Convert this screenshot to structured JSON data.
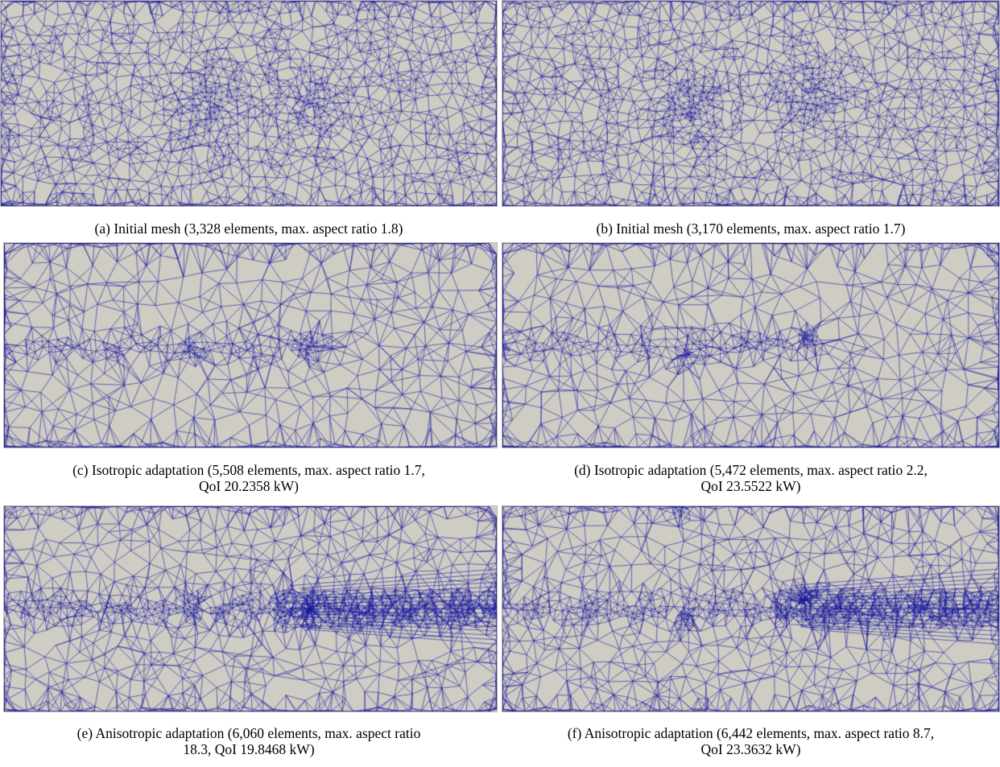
{
  "figure": {
    "panels": [
      {
        "id": "a",
        "caption_lines": [
          "(a) Initial mesh (3,328 elements, max. aspect ratio 1.8)"
        ],
        "elements": 3328,
        "max_aspect_ratio": 1.8,
        "adaptation": "none"
      },
      {
        "id": "b",
        "caption_lines": [
          "(b) Initial mesh (3,170 elements, max. aspect ratio 1.7)"
        ],
        "elements": 3170,
        "max_aspect_ratio": 1.7,
        "adaptation": "none"
      },
      {
        "id": "c",
        "caption_lines": [
          "(c) Isotropic adaptation (5,508 elements, max. aspect ratio 1.7,",
          "QoI 20.2358 kW)"
        ],
        "elements": 5508,
        "max_aspect_ratio": 1.7,
        "qoi_kw": 20.2358,
        "adaptation": "isotropic"
      },
      {
        "id": "d",
        "caption_lines": [
          "(d) Isotropic adaptation (5,472 elements, max. aspect ratio 2.2,",
          "QoI 23.5522 kW)"
        ],
        "elements": 5472,
        "max_aspect_ratio": 2.2,
        "qoi_kw": 23.5522,
        "adaptation": "isotropic"
      },
      {
        "id": "e",
        "caption_lines": [
          "(e) Anisotropic adaptation (6,060 elements, max. aspect ratio",
          "18.3, QoI 19.8468 kW)"
        ],
        "elements": 6060,
        "max_aspect_ratio": 18.3,
        "qoi_kw": 19.8468,
        "adaptation": "anisotropic"
      },
      {
        "id": "f",
        "caption_lines": [
          "(f) Anisotropic adaptation (6,442 elements, max. aspect ratio 8.7,",
          "QoI 23.3632 kW)"
        ],
        "elements": 6442,
        "max_aspect_ratio": 8.7,
        "qoi_kw": 23.3632,
        "adaptation": "anisotropic"
      }
    ],
    "colors": {
      "mesh_background": "#cfccc4",
      "mesh_lines": "#1a1a9e",
      "caption_text": "#000000"
    }
  }
}
